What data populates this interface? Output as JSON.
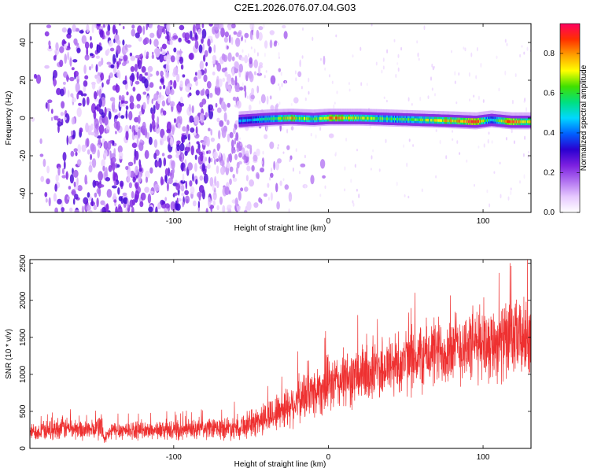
{
  "title": "C2E1.2026.076.07.04.G03",
  "chart_data": [
    {
      "type": "heatmap",
      "xlabel": "Height of straight line (km)",
      "ylabel": "Frequency (Hz)",
      "xlim": [
        -193,
        131
      ],
      "ylim": [
        -50,
        50
      ],
      "xticks": [
        -100,
        0,
        100
      ],
      "yticks": [
        -40,
        -20,
        0,
        20,
        40
      ],
      "colorbar": {
        "label": "Normalized spectral amplitude",
        "range": [
          0,
          0.95
        ],
        "ticks": [
          0,
          0.2,
          0.4,
          0.6,
          0.8
        ],
        "colors": [
          "#ffffff",
          "#e6c8ff",
          "#b070f0",
          "#7b1fe0",
          "#2a00d0",
          "#0060ff",
          "#00d8ff",
          "#00e080",
          "#40e000",
          "#ffff00",
          "#ffa000",
          "#ff3000",
          "#ff0060"
        ]
      },
      "noise_region": {
        "x_range": [
          -193,
          -33
        ],
        "amplitude_range": [
          0.05,
          0.3
        ]
      },
      "signal_track": [
        {
          "x": -58,
          "y": -1.5,
          "amplitude": 0.45
        },
        {
          "x": -40,
          "y": -0.5,
          "amplitude": 0.55
        },
        {
          "x": -25,
          "y": 0,
          "amplitude": 0.8
        },
        {
          "x": -10,
          "y": -0.5,
          "amplitude": 0.6
        },
        {
          "x": 0,
          "y": 0,
          "amplitude": 0.85
        },
        {
          "x": 20,
          "y": 0,
          "amplitude": 0.7
        },
        {
          "x": 40,
          "y": -0.5,
          "amplitude": 0.6
        },
        {
          "x": 60,
          "y": -1,
          "amplitude": 0.65
        },
        {
          "x": 80,
          "y": -1.5,
          "amplitude": 0.8
        },
        {
          "x": 95,
          "y": -2,
          "amplitude": 0.95
        },
        {
          "x": 105,
          "y": -1,
          "amplitude": 0.5
        },
        {
          "x": 118,
          "y": -2,
          "amplitude": 0.9
        },
        {
          "x": 131,
          "y": -2,
          "amplitude": 0.7
        }
      ]
    },
    {
      "type": "line",
      "xlabel": "Height of straight line (km)",
      "ylabel": "SNR (10 * v/v)",
      "xlim": [
        -193,
        131
      ],
      "ylim": [
        0,
        2550
      ],
      "xticks": [
        -100,
        0,
        100
      ],
      "yticks": [
        0,
        500,
        1000,
        1500,
        2000,
        2500
      ],
      "series": [
        {
          "color": "#ee3030",
          "x": [
            -193,
            -180,
            -170,
            -160,
            -150,
            -147,
            -145,
            -140,
            -130,
            -120,
            -110,
            -100,
            -90,
            -80,
            -70,
            -60,
            -50,
            -40,
            -30,
            -20,
            -10,
            0,
            10,
            20,
            30,
            40,
            50,
            60,
            70,
            80,
            90,
            100,
            110,
            120,
            131
          ],
          "y": [
            220,
            260,
            280,
            250,
            260,
            320,
            120,
            240,
            250,
            240,
            250,
            240,
            250,
            260,
            270,
            290,
            330,
            420,
            530,
            640,
            760,
            860,
            920,
            980,
            1050,
            1120,
            1180,
            1240,
            1300,
            1350,
            1390,
            1420,
            1440,
            1470,
            1500
          ],
          "spread": [
            130,
            170,
            190,
            160,
            160,
            300,
            90,
            150,
            150,
            140,
            150,
            150,
            160,
            170,
            180,
            200,
            230,
            280,
            330,
            380,
            420,
            450,
            470,
            490,
            510,
            530,
            540,
            560,
            580,
            590,
            600,
            610,
            620,
            630,
            640
          ]
        }
      ]
    }
  ]
}
